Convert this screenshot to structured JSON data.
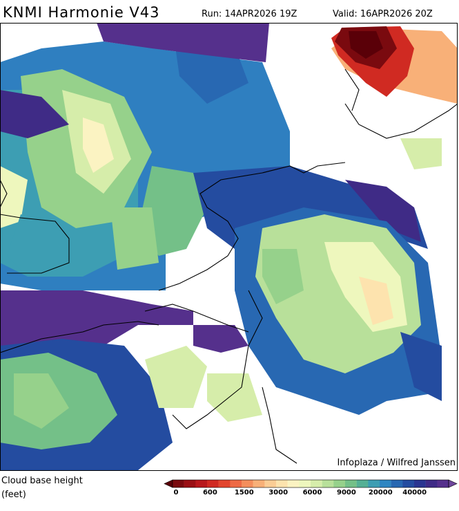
{
  "header": {
    "title": "KNMI Harmonie V43",
    "run": "Run: 14APR2026 19Z",
    "valid": "Valid: 16APR2026 20Z"
  },
  "map": {
    "credit": "Infoplaza / Wilfred Janssen"
  },
  "legend": {
    "title_line1": "Cloud base height",
    "title_line2": "(feet)",
    "labels": [
      "0",
      "600",
      "1500",
      "3000",
      "6000",
      "9000",
      "20000",
      "40000"
    ],
    "colors": [
      "#5a0008",
      "#7a0a0f",
      "#9a1015",
      "#b8181c",
      "#d02a22",
      "#e2452e",
      "#ee6a45",
      "#f48e5c",
      "#f8b078",
      "#fbcd95",
      "#fde3ae",
      "#fbf3c2",
      "#eef7bd",
      "#d6edaa",
      "#b8e09a",
      "#96d18b",
      "#74c088",
      "#55b095",
      "#3d9eb3",
      "#2f86c2",
      "#2868b2",
      "#244ca0",
      "#2a3591",
      "#3f2b86",
      "#55308c",
      "#6e469c"
    ]
  }
}
